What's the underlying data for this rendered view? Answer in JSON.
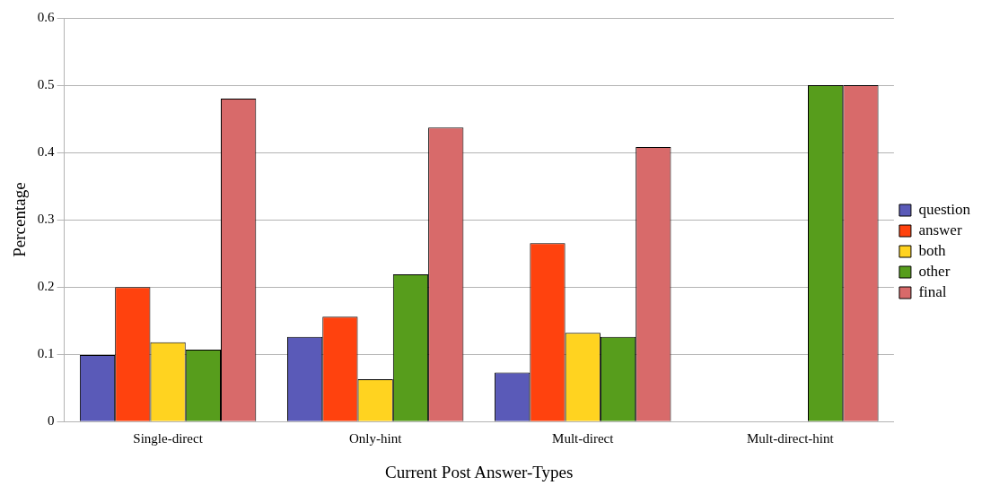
{
  "chart_data": {
    "type": "bar",
    "xlabel": "Current Post Answer-Types",
    "ylabel": "Percentage",
    "categories": [
      "Single-direct",
      "Only-hint",
      "Mult-direct",
      "Mult-direct-hint"
    ],
    "series": [
      {
        "name": "question",
        "color": "#5a5ab8",
        "values": [
          0.099,
          0.126,
          0.073,
          0
        ]
      },
      {
        "name": "answer",
        "color": "#ff420e",
        "values": [
          0.2,
          0.156,
          0.265,
          0
        ]
      },
      {
        "name": "both",
        "color": "#ffd320",
        "values": [
          0.118,
          0.063,
          0.132,
          0
        ]
      },
      {
        "name": "other",
        "color": "#579d1c",
        "values": [
          0.107,
          0.219,
          0.126,
          0.5
        ]
      },
      {
        "name": "final",
        "color": "#d86a6a",
        "values": [
          0.48,
          0.437,
          0.408,
          0.5
        ]
      }
    ],
    "ylim": [
      0,
      0.6
    ],
    "yticks": [
      0,
      0.1,
      0.2,
      0.3,
      0.4,
      0.5,
      0.6
    ],
    "grid": "y",
    "legend": "right"
  }
}
